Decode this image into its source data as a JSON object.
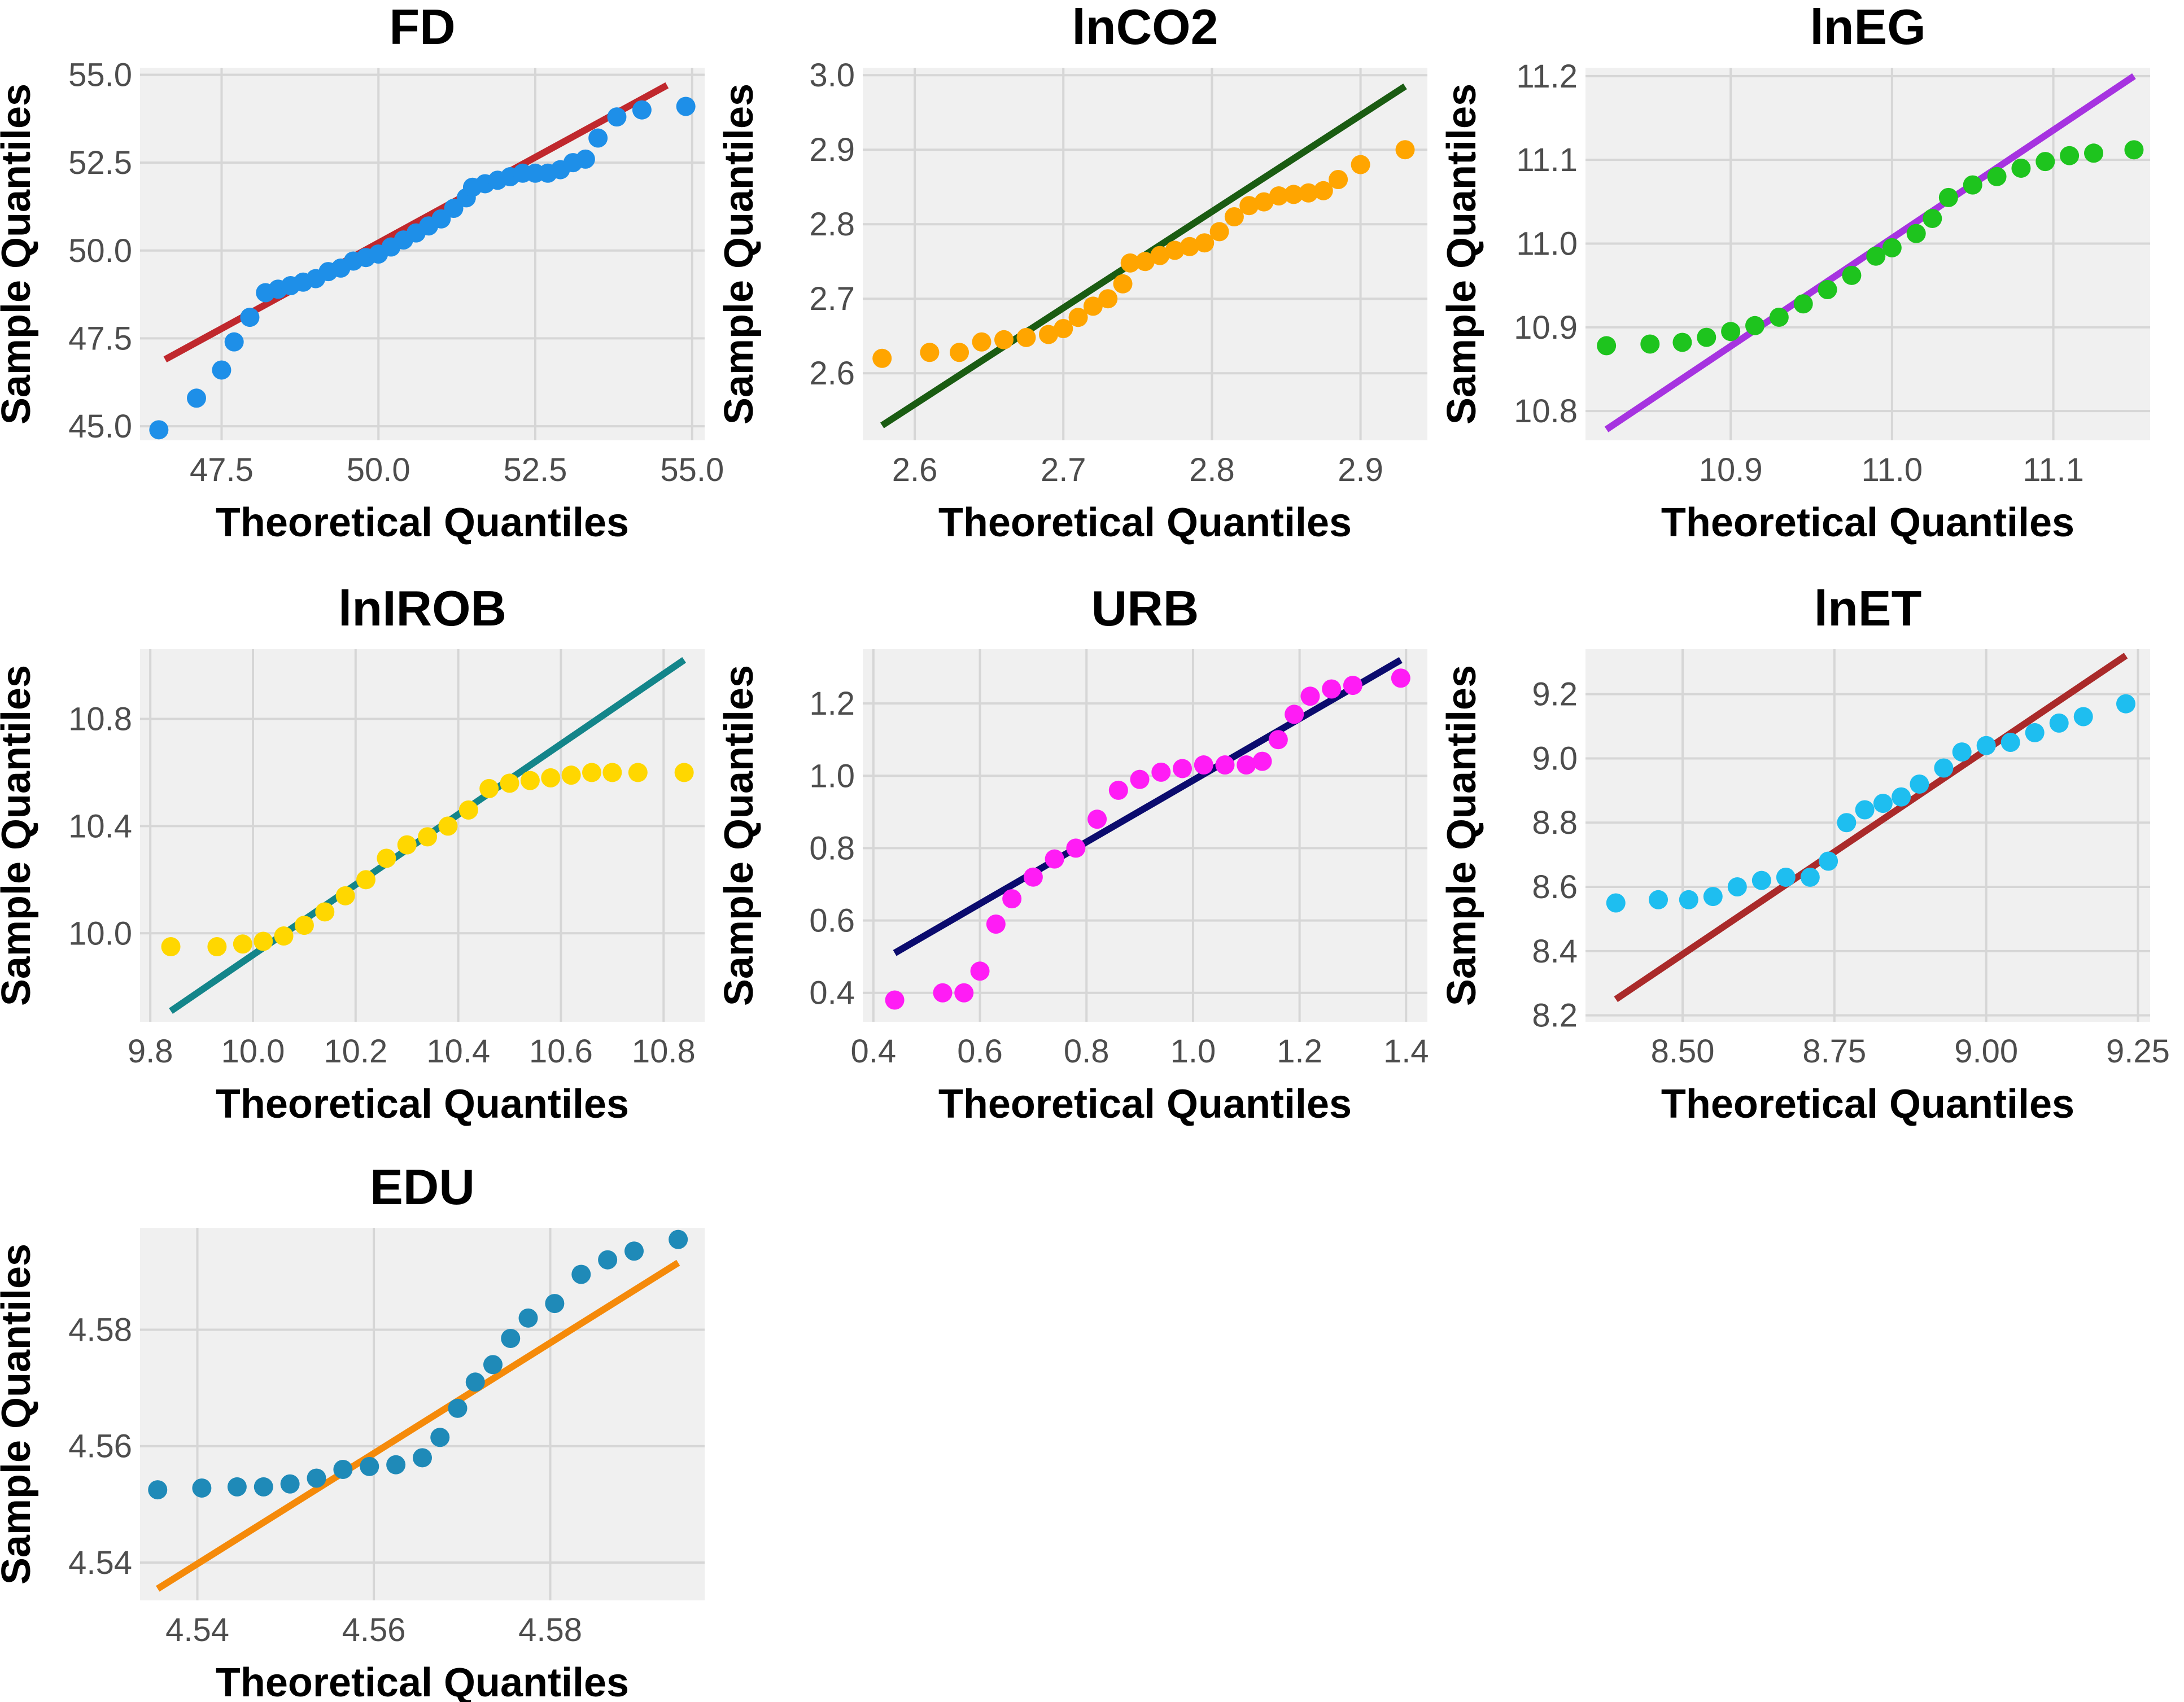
{
  "figure": {
    "description_axis_x": "Theoretical Quantiles",
    "description_axis_y": "Sample Quantiles"
  },
  "chart_data": [
    {
      "type": "scatter",
      "title": "FD",
      "xlabel": "Theoretical Quantiles",
      "ylabel": "Sample Quantiles",
      "xlim": [
        46.2,
        55.2
      ],
      "ylim": [
        44.6,
        55.2
      ],
      "xticks": [
        47.5,
        50.0,
        52.5,
        55.0
      ],
      "xtick_labels": [
        "47.5",
        "50.0",
        "52.5",
        "55.0"
      ],
      "yticks": [
        45.0,
        47.5,
        50.0,
        52.5,
        55.0
      ],
      "ytick_labels": [
        "45.0",
        "47.5",
        "50.0",
        "52.5",
        "55.0"
      ],
      "point_color": "#1e8fe8",
      "line_color": "#c0282d",
      "reference_line": [
        [
          46.6,
          46.9
        ],
        [
          54.6,
          54.7
        ]
      ],
      "points": [
        [
          46.5,
          44.9
        ],
        [
          47.1,
          45.8
        ],
        [
          47.5,
          46.6
        ],
        [
          47.7,
          47.4
        ],
        [
          47.95,
          48.1
        ],
        [
          48.2,
          48.8
        ],
        [
          48.4,
          48.9
        ],
        [
          48.6,
          49.0
        ],
        [
          48.8,
          49.1
        ],
        [
          49.0,
          49.2
        ],
        [
          49.2,
          49.4
        ],
        [
          49.4,
          49.5
        ],
        [
          49.6,
          49.7
        ],
        [
          49.8,
          49.8
        ],
        [
          50.0,
          49.9
        ],
        [
          50.2,
          50.1
        ],
        [
          50.4,
          50.3
        ],
        [
          50.6,
          50.5
        ],
        [
          50.8,
          50.7
        ],
        [
          51.0,
          50.9
        ],
        [
          51.2,
          51.2
        ],
        [
          51.4,
          51.5
        ],
        [
          51.5,
          51.8
        ],
        [
          51.7,
          51.9
        ],
        [
          51.9,
          52.0
        ],
        [
          52.1,
          52.1
        ],
        [
          52.3,
          52.2
        ],
        [
          52.5,
          52.2
        ],
        [
          52.7,
          52.2
        ],
        [
          52.9,
          52.3
        ],
        [
          53.1,
          52.5
        ],
        [
          53.3,
          52.6
        ],
        [
          53.5,
          53.2
        ],
        [
          53.8,
          53.8
        ],
        [
          54.2,
          54.0
        ],
        [
          54.9,
          54.1
        ]
      ]
    },
    {
      "type": "scatter",
      "title": "lnCO2",
      "xlabel": "Theoretical Quantiles",
      "ylabel": "Sample Quantiles",
      "xlim": [
        2.565,
        2.945
      ],
      "ylim": [
        2.51,
        3.01
      ],
      "xticks": [
        2.6,
        2.7,
        2.8,
        2.9
      ],
      "xtick_labels": [
        "2.6",
        "2.7",
        "2.8",
        "2.9"
      ],
      "yticks": [
        2.6,
        2.7,
        2.8,
        2.9,
        3.0
      ],
      "ytick_labels": [
        "2.6",
        "2.7",
        "2.8",
        "2.9",
        "3.0"
      ],
      "point_color": "#ffa500",
      "line_color": "#1a5c12",
      "reference_line": [
        [
          2.578,
          2.53
        ],
        [
          2.93,
          2.985
        ]
      ],
      "points": [
        [
          2.578,
          2.62
        ],
        [
          2.61,
          2.628
        ],
        [
          2.63,
          2.628
        ],
        [
          2.645,
          2.642
        ],
        [
          2.66,
          2.645
        ],
        [
          2.675,
          2.648
        ],
        [
          2.69,
          2.652
        ],
        [
          2.7,
          2.66
        ],
        [
          2.71,
          2.675
        ],
        [
          2.72,
          2.69
        ],
        [
          2.73,
          2.7
        ],
        [
          2.74,
          2.72
        ],
        [
          2.745,
          2.748
        ],
        [
          2.755,
          2.75
        ],
        [
          2.765,
          2.758
        ],
        [
          2.775,
          2.765
        ],
        [
          2.785,
          2.77
        ],
        [
          2.795,
          2.775
        ],
        [
          2.805,
          2.79
        ],
        [
          2.815,
          2.81
        ],
        [
          2.825,
          2.825
        ],
        [
          2.835,
          2.83
        ],
        [
          2.845,
          2.838
        ],
        [
          2.855,
          2.84
        ],
        [
          2.865,
          2.842
        ],
        [
          2.875,
          2.845
        ],
        [
          2.885,
          2.86
        ],
        [
          2.9,
          2.88
        ],
        [
          2.93,
          2.9
        ]
      ]
    },
    {
      "type": "scatter",
      "title": "lnEG",
      "xlabel": "Theoretical Quantiles",
      "ylabel": "Sample Quantiles",
      "xlim": [
        10.81,
        11.16
      ],
      "ylim": [
        10.765,
        11.21
      ],
      "xticks": [
        10.9,
        11.0,
        11.1
      ],
      "xtick_labels": [
        "10.9",
        "11.0",
        "11.1"
      ],
      "yticks": [
        10.8,
        10.9,
        11.0,
        11.1,
        11.2
      ],
      "ytick_labels": [
        "10.8",
        "10.9",
        "11.0",
        "11.1",
        "11.2"
      ],
      "point_color": "#1ec41e",
      "line_color": "#a633e0",
      "reference_line": [
        [
          10.823,
          10.778
        ],
        [
          11.15,
          11.2
        ]
      ],
      "points": [
        [
          10.823,
          10.878
        ],
        [
          10.85,
          10.88
        ],
        [
          10.87,
          10.882
        ],
        [
          10.885,
          10.888
        ],
        [
          10.9,
          10.895
        ],
        [
          10.915,
          10.902
        ],
        [
          10.93,
          10.912
        ],
        [
          10.945,
          10.928
        ],
        [
          10.96,
          10.945
        ],
        [
          10.975,
          10.962
        ],
        [
          10.99,
          10.985
        ],
        [
          11.0,
          10.995
        ],
        [
          11.015,
          11.012
        ],
        [
          11.025,
          11.03
        ],
        [
          11.035,
          11.055
        ],
        [
          11.05,
          11.07
        ],
        [
          11.065,
          11.08
        ],
        [
          11.08,
          11.09
        ],
        [
          11.095,
          11.098
        ],
        [
          11.11,
          11.105
        ],
        [
          11.125,
          11.108
        ],
        [
          11.15,
          11.112
        ]
      ]
    },
    {
      "type": "scatter",
      "title": "lnIROB",
      "xlabel": "Theoretical Quantiles",
      "ylabel": "Sample Quantiles",
      "xlim": [
        9.78,
        10.88
      ],
      "ylim": [
        9.67,
        11.06
      ],
      "xticks": [
        9.8,
        10.0,
        10.2,
        10.4,
        10.6,
        10.8
      ],
      "xtick_labels": [
        "9.8",
        "10.0",
        "10.2",
        "10.4",
        "10.6",
        "10.8"
      ],
      "yticks": [
        10.0,
        10.4,
        10.8
      ],
      "ytick_labels": [
        "10.0",
        "10.4",
        "10.8"
      ],
      "point_color": "#ffd700",
      "line_color": "#13858a",
      "reference_line": [
        [
          9.84,
          9.71
        ],
        [
          10.84,
          11.02
        ]
      ],
      "points": [
        [
          9.84,
          9.95
        ],
        [
          9.93,
          9.95
        ],
        [
          9.98,
          9.96
        ],
        [
          10.02,
          9.97
        ],
        [
          10.06,
          9.99
        ],
        [
          10.1,
          10.03
        ],
        [
          10.14,
          10.08
        ],
        [
          10.18,
          10.14
        ],
        [
          10.22,
          10.2
        ],
        [
          10.26,
          10.28
        ],
        [
          10.3,
          10.33
        ],
        [
          10.34,
          10.36
        ],
        [
          10.38,
          10.4
        ],
        [
          10.42,
          10.46
        ],
        [
          10.46,
          10.54
        ],
        [
          10.5,
          10.56
        ],
        [
          10.54,
          10.57
        ],
        [
          10.58,
          10.58
        ],
        [
          10.62,
          10.59
        ],
        [
          10.66,
          10.6
        ],
        [
          10.7,
          10.6
        ],
        [
          10.75,
          10.6
        ],
        [
          10.84,
          10.6
        ]
      ]
    },
    {
      "type": "scatter",
      "title": "URB",
      "xlabel": "Theoretical Quantiles",
      "ylabel": "Sample Quantiles",
      "xlim": [
        0.38,
        1.44
      ],
      "ylim": [
        0.32,
        1.35
      ],
      "xticks": [
        0.4,
        0.6,
        0.8,
        1.0,
        1.2,
        1.4
      ],
      "xtick_labels": [
        "0.4",
        "0.6",
        "0.8",
        "1.0",
        "1.2",
        "1.4"
      ],
      "yticks": [
        0.4,
        0.6,
        0.8,
        1.0,
        1.2
      ],
      "ytick_labels": [
        "0.4",
        "0.6",
        "0.8",
        "1.0",
        "1.2"
      ],
      "point_color": "#ff1cf5",
      "line_color": "#0b0b6e",
      "reference_line": [
        [
          0.44,
          0.51
        ],
        [
          1.39,
          1.32
        ]
      ],
      "points": [
        [
          0.44,
          0.38
        ],
        [
          0.53,
          0.4
        ],
        [
          0.57,
          0.4
        ],
        [
          0.6,
          0.46
        ],
        [
          0.63,
          0.59
        ],
        [
          0.66,
          0.66
        ],
        [
          0.7,
          0.72
        ],
        [
          0.74,
          0.77
        ],
        [
          0.78,
          0.8
        ],
        [
          0.82,
          0.88
        ],
        [
          0.86,
          0.96
        ],
        [
          0.9,
          0.99
        ],
        [
          0.94,
          1.01
        ],
        [
          0.98,
          1.02
        ],
        [
          1.02,
          1.03
        ],
        [
          1.06,
          1.03
        ],
        [
          1.1,
          1.03
        ],
        [
          1.13,
          1.04
        ],
        [
          1.16,
          1.1
        ],
        [
          1.19,
          1.17
        ],
        [
          1.22,
          1.22
        ],
        [
          1.26,
          1.24
        ],
        [
          1.3,
          1.25
        ],
        [
          1.39,
          1.27
        ]
      ]
    },
    {
      "type": "scatter",
      "title": "lnET",
      "xlabel": "Theoretical Quantiles",
      "ylabel": "Sample Quantiles",
      "xlim": [
        8.34,
        9.27
      ],
      "ylim": [
        8.18,
        9.34
      ],
      "xticks": [
        8.5,
        8.75,
        9.0,
        9.25
      ],
      "xtick_labels": [
        "8.50",
        "8.75",
        "9.00",
        "9.25"
      ],
      "yticks": [
        8.2,
        8.4,
        8.6,
        8.8,
        9.0,
        9.2
      ],
      "ytick_labels": [
        "8.2",
        "8.4",
        "8.6",
        "8.8",
        "9.0",
        "9.2"
      ],
      "point_color": "#1ebef0",
      "line_color": "#aa2a2a",
      "reference_line": [
        [
          8.39,
          8.25
        ],
        [
          9.23,
          9.32
        ]
      ],
      "points": [
        [
          8.39,
          8.55
        ],
        [
          8.46,
          8.56
        ],
        [
          8.51,
          8.56
        ],
        [
          8.55,
          8.57
        ],
        [
          8.59,
          8.6
        ],
        [
          8.63,
          8.62
        ],
        [
          8.67,
          8.63
        ],
        [
          8.71,
          8.63
        ],
        [
          8.74,
          8.68
        ],
        [
          8.77,
          8.8
        ],
        [
          8.8,
          8.84
        ],
        [
          8.83,
          8.86
        ],
        [
          8.86,
          8.88
        ],
        [
          8.89,
          8.92
        ],
        [
          8.93,
          8.97
        ],
        [
          8.96,
          9.02
        ],
        [
          9.0,
          9.04
        ],
        [
          9.04,
          9.05
        ],
        [
          9.08,
          9.08
        ],
        [
          9.12,
          9.11
        ],
        [
          9.16,
          9.13
        ],
        [
          9.23,
          9.17
        ]
      ]
    },
    {
      "type": "scatter",
      "title": "EDU",
      "xlabel": "Theoretical Quantiles",
      "ylabel": "Sample Quantiles",
      "xlim": [
        4.5335,
        4.5975
      ],
      "ylim": [
        4.5335,
        4.5975
      ],
      "xticks": [
        4.54,
        4.56,
        4.58
      ],
      "xtick_labels": [
        "4.54",
        "4.56",
        "4.58"
      ],
      "yticks": [
        4.54,
        4.56,
        4.58
      ],
      "ytick_labels": [
        "4.54",
        "4.56",
        "4.58"
      ],
      "point_color": "#1f8ab8",
      "line_color": "#f58a0a",
      "reference_line": [
        [
          4.5355,
          4.5355
        ],
        [
          4.5945,
          4.5915
        ]
      ],
      "points": [
        [
          4.5355,
          4.5525
        ],
        [
          4.5405,
          4.5528
        ],
        [
          4.5445,
          4.553
        ],
        [
          4.5475,
          4.553
        ],
        [
          4.5505,
          4.5535
        ],
        [
          4.5535,
          4.5545
        ],
        [
          4.5565,
          4.556
        ],
        [
          4.5595,
          4.5565
        ],
        [
          4.5625,
          4.5568
        ],
        [
          4.5655,
          4.558
        ],
        [
          4.5675,
          4.5615
        ],
        [
          4.5695,
          4.5665
        ],
        [
          4.5715,
          4.571
        ],
        [
          4.5735,
          4.574
        ],
        [
          4.5755,
          4.5785
        ],
        [
          4.5775,
          4.582
        ],
        [
          4.5805,
          4.5845
        ],
        [
          4.5835,
          4.5895
        ],
        [
          4.5865,
          4.592
        ],
        [
          4.5895,
          4.5935
        ],
        [
          4.5945,
          4.5955
        ]
      ]
    }
  ]
}
